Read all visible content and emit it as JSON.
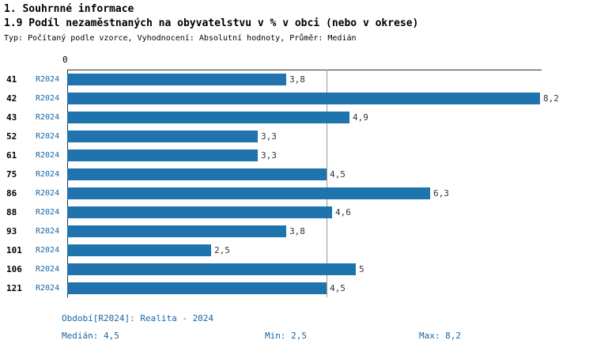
{
  "title": "1. Souhrnné informace",
  "subtitle": "1.9 Podíl nezaměstnaných na obyvatelstvu v % v obci (nebo v okrese)",
  "meta": "Typ: Počítaný podle vzorce, Vyhodnocení: Absolutní hodnoty, Průměr: Medián",
  "axis_zero_label": "0",
  "chart_data": {
    "type": "bar",
    "orientation": "horizontal",
    "title": "1.9 Podíl nezaměstnaných na obyvatelstvu v % v obci (nebo v okrese)",
    "categories": [
      "41",
      "42",
      "43",
      "52",
      "61",
      "75",
      "86",
      "88",
      "93",
      "101",
      "106",
      "121"
    ],
    "series_label": "R2024",
    "values": [
      3.8,
      8.2,
      4.9,
      3.3,
      3.3,
      4.5,
      6.3,
      4.6,
      3.8,
      2.5,
      5,
      4.5
    ],
    "value_labels": [
      "3,8",
      "8,2",
      "4,9",
      "3,3",
      "3,3",
      "4,5",
      "6,3",
      "4,6",
      "3,8",
      "2,5",
      "5",
      "4,5"
    ],
    "xlim": [
      0,
      8.2
    ],
    "median_line": 4.5,
    "bar_color": "#1f74ad",
    "legend_position": "none",
    "grid": "median-only"
  },
  "footer": {
    "period": "Období[R2024]: Realita - 2024",
    "median": "Medián: 4,5",
    "min": "Min: 2,5",
    "max": "Max: 8,2"
  },
  "colors": {
    "bar": "#1f74ad",
    "series_text": "#1565a5",
    "footer_text": "#1565a5",
    "axis": "#333333",
    "median_line": "#9a9a9a"
  }
}
